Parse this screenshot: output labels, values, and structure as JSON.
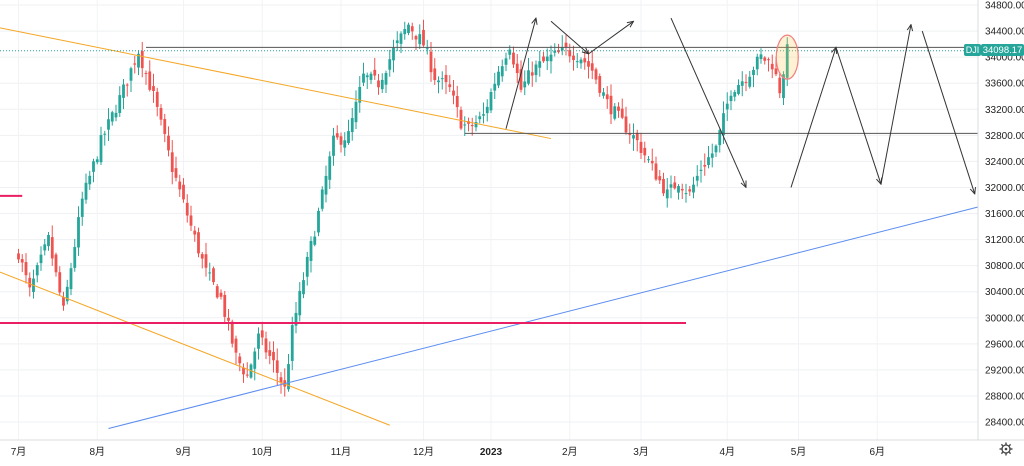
{
  "chart_data": {
    "type": "candlestick",
    "symbol": "DJI",
    "last_price_label": "34098.17",
    "ylim": [
      28200,
      34900
    ],
    "y_ticks": [
      34800,
      34400,
      34000,
      33600,
      33200,
      32800,
      32400,
      32000,
      31600,
      31200,
      30800,
      30400,
      30000,
      29600,
      29200,
      28800,
      28400
    ],
    "y_tick_labels": [
      "34800.00",
      "34400.00",
      "34000.00",
      "33600.00",
      "33200.00",
      "32800.00",
      "32400.00",
      "32000.00",
      "31600.00",
      "31200.00",
      "30800.00",
      "30400.00",
      "30000.00",
      "29600.00",
      "29200.00",
      "28800.00",
      "28400.00"
    ],
    "x_labels": [
      {
        "text": "7月",
        "bold": false
      },
      {
        "text": "8月",
        "bold": false
      },
      {
        "text": "9月",
        "bold": false
      },
      {
        "text": "10月",
        "bold": false
      },
      {
        "text": "11月",
        "bold": false
      },
      {
        "text": "12月",
        "bold": false
      },
      {
        "text": "2023",
        "bold": true
      },
      {
        "text": "2月",
        "bold": false
      },
      {
        "text": "3月",
        "bold": false
      },
      {
        "text": "4月",
        "bold": false
      },
      {
        "text": "5月",
        "bold": false
      },
      {
        "text": "6月",
        "bold": false
      }
    ],
    "x_label_sessions": [
      0,
      21,
      44,
      65,
      86,
      108,
      126,
      147,
      166,
      189,
      208,
      229
    ],
    "anchors": [
      {
        "i": 0,
        "v": 31000
      },
      {
        "i": 3,
        "v": 30400
      },
      {
        "i": 8,
        "v": 31200
      },
      {
        "i": 12,
        "v": 30100
      },
      {
        "i": 17,
        "v": 31800
      },
      {
        "i": 22,
        "v": 32700
      },
      {
        "i": 28,
        "v": 33500
      },
      {
        "i": 32,
        "v": 34100
      },
      {
        "i": 36,
        "v": 33400
      },
      {
        "i": 41,
        "v": 32300
      },
      {
        "i": 46,
        "v": 31400
      },
      {
        "i": 50,
        "v": 30700
      },
      {
        "i": 54,
        "v": 30300
      },
      {
        "i": 58,
        "v": 29400
      },
      {
        "i": 61,
        "v": 29100
      },
      {
        "i": 64,
        "v": 29700
      },
      {
        "i": 68,
        "v": 29300
      },
      {
        "i": 71,
        "v": 28900
      },
      {
        "i": 73,
        "v": 29800
      },
      {
        "i": 76,
        "v": 30600
      },
      {
        "i": 80,
        "v": 31600
      },
      {
        "i": 84,
        "v": 32700
      },
      {
        "i": 88,
        "v": 32800
      },
      {
        "i": 92,
        "v": 33700
      },
      {
        "i": 96,
        "v": 33600
      },
      {
        "i": 100,
        "v": 34100
      },
      {
        "i": 104,
        "v": 34500
      },
      {
        "i": 108,
        "v": 34200
      },
      {
        "i": 111,
        "v": 33700
      },
      {
        "i": 115,
        "v": 33500
      },
      {
        "i": 118,
        "v": 33000
      },
      {
        "i": 120,
        "v": 32900
      },
      {
        "i": 124,
        "v": 33100
      },
      {
        "i": 128,
        "v": 33800
      },
      {
        "i": 131,
        "v": 34200
      },
      {
        "i": 134,
        "v": 33500
      },
      {
        "i": 137,
        "v": 33800
      },
      {
        "i": 142,
        "v": 34000
      },
      {
        "i": 146,
        "v": 34100
      },
      {
        "i": 150,
        "v": 34000
      },
      {
        "i": 153,
        "v": 33800
      },
      {
        "i": 157,
        "v": 33300
      },
      {
        "i": 161,
        "v": 33000
      },
      {
        "i": 165,
        "v": 32700
      },
      {
        "i": 169,
        "v": 32300
      },
      {
        "i": 173,
        "v": 31900
      },
      {
        "i": 176,
        "v": 32100
      },
      {
        "i": 179,
        "v": 31900
      },
      {
        "i": 182,
        "v": 32300
      },
      {
        "i": 186,
        "v": 32600
      },
      {
        "i": 190,
        "v": 33500
      },
      {
        "i": 194,
        "v": 33700
      },
      {
        "i": 198,
        "v": 34000
      },
      {
        "i": 201,
        "v": 33900
      },
      {
        "i": 203,
        "v": 33500
      },
      {
        "i": 205,
        "v": 34100
      }
    ],
    "colors": {
      "up": "#26a69a",
      "down": "#ef5350",
      "support_line": "#e91e63",
      "trend_orange": "#f5a623",
      "trend_blue": "#5b8def",
      "projection": "#333333",
      "price_tag": "#26a69a",
      "circle": "#f08080"
    }
  }
}
